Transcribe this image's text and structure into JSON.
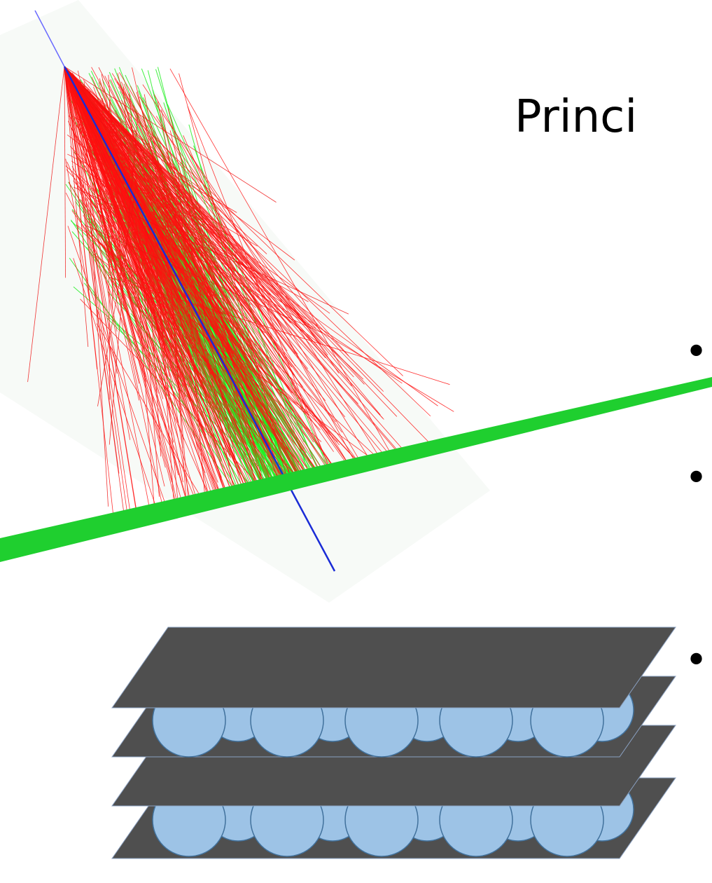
{
  "title": "Princi",
  "bullets": [
    "•",
    "•",
    "•"
  ]
}
